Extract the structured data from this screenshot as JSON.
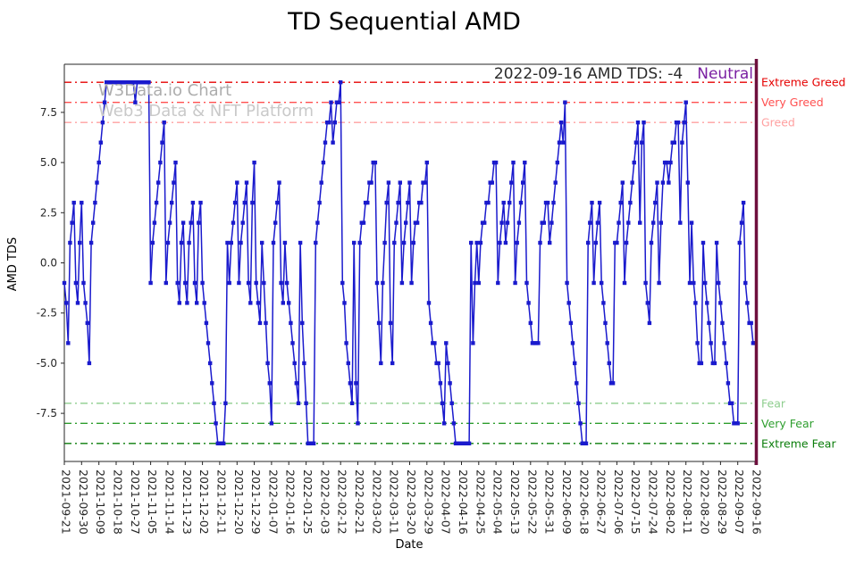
{
  "title": "TD Sequential AMD",
  "watermark": {
    "line1": "W3Data.io Chart",
    "line2": "Web3 Data & NFT Platform"
  },
  "annotation": {
    "text": "2022-09-16 AMD TDS: -4",
    "sentiment": "Neutral",
    "sentiment_color": "#7a1fa2"
  },
  "chart_data": {
    "type": "line",
    "title": "TD Sequential AMD",
    "xlabel": "Date",
    "ylabel": "AMD TDS",
    "ylim": [
      -9.9,
      9.9
    ],
    "yticks": [
      7.5,
      5.0,
      2.5,
      0.0,
      -2.5,
      -5.0,
      -7.5
    ],
    "grid": false,
    "line_color": "#1a1acd",
    "marker": "square",
    "last_date_line_color": "#6e0f3d",
    "x_tick_every": 9,
    "x_tick_labels": [
      "2021-09-21",
      "2021-09-30",
      "2021-10-09",
      "2021-10-18",
      "2021-10-27",
      "2021-11-05",
      "2021-11-14",
      "2021-11-23",
      "2021-12-02",
      "2021-12-11",
      "2021-12-20",
      "2021-12-29",
      "2022-01-07",
      "2022-01-16",
      "2022-01-25",
      "2022-02-03",
      "2022-02-12",
      "2022-02-21",
      "2022-03-02",
      "2022-03-11",
      "2022-03-20",
      "2022-03-29",
      "2022-04-07",
      "2022-04-16",
      "2022-04-25",
      "2022-05-04",
      "2022-05-13",
      "2022-05-22",
      "2022-05-31",
      "2022-06-09",
      "2022-06-18",
      "2022-06-27",
      "2022-07-06",
      "2022-07-15",
      "2022-07-24",
      "2022-08-02",
      "2022-08-11",
      "2022-08-20",
      "2022-08-29",
      "2022-09-07",
      "2022-09-16"
    ],
    "values": [
      -1,
      -2,
      -4,
      1,
      2,
      3,
      -1,
      -2,
      1,
      3,
      -1,
      -2,
      -3,
      -5,
      1,
      2,
      3,
      4,
      5,
      6,
      7,
      8,
      9,
      9,
      9,
      9,
      9,
      9,
      9,
      9,
      9,
      9,
      9,
      9,
      9,
      9,
      9,
      8,
      9,
      9,
      9,
      9,
      9,
      9,
      9,
      -1,
      1,
      2,
      3,
      4,
      5,
      6,
      7,
      -1,
      1,
      2,
      3,
      4,
      5,
      -1,
      -2,
      1,
      2,
      -1,
      -2,
      1,
      2,
      3,
      -1,
      -2,
      2,
      3,
      -1,
      -2,
      -3,
      -4,
      -5,
      -6,
      -7,
      -8,
      -9,
      -9,
      -9,
      -9,
      -7,
      1,
      -1,
      1,
      2,
      3,
      4,
      -1,
      1,
      2,
      3,
      4,
      -1,
      -2,
      3,
      5,
      -1,
      -2,
      -3,
      1,
      -1,
      -3,
      -5,
      -6,
      -8,
      1,
      2,
      3,
      4,
      -1,
      -2,
      1,
      -1,
      -2,
      -3,
      -4,
      -5,
      -6,
      -7,
      1,
      -3,
      -5,
      -7,
      -9,
      -9,
      -9,
      -9,
      1,
      2,
      3,
      4,
      5,
      6,
      7,
      7,
      8,
      6,
      7,
      8,
      8,
      9,
      -1,
      -2,
      -4,
      -5,
      -6,
      -7,
      1,
      -6,
      -8,
      1,
      2,
      2,
      3,
      3,
      4,
      4,
      5,
      5,
      -1,
      -3,
      -5,
      -1,
      1,
      3,
      4,
      -3,
      -5,
      1,
      2,
      3,
      4,
      -1,
      1,
      2,
      3,
      4,
      -1,
      1,
      2,
      2,
      3,
      3,
      4,
      4,
      5,
      -2,
      -3,
      -4,
      -4,
      -5,
      -5,
      -6,
      -7,
      -8,
      -4,
      -5,
      -6,
      -7,
      -8,
      -9,
      -9,
      -9,
      -9,
      -9,
      -9,
      -9,
      -9,
      1,
      -4,
      -1,
      1,
      -1,
      1,
      2,
      2,
      3,
      3,
      4,
      4,
      5,
      5,
      -1,
      1,
      2,
      3,
      1,
      2,
      3,
      4,
      5,
      -1,
      1,
      2,
      3,
      4,
      5,
      -1,
      -2,
      -3,
      -4,
      -4,
      -4,
      -4,
      1,
      2,
      2,
      3,
      3,
      1,
      2,
      3,
      4,
      5,
      6,
      7,
      6,
      8,
      -1,
      -2,
      -3,
      -4,
      -5,
      -6,
      -7,
      -8,
      -9,
      -9,
      -9,
      1,
      2,
      3,
      -1,
      1,
      2,
      3,
      -1,
      -2,
      -3,
      -4,
      -5,
      -6,
      -6,
      1,
      1,
      2,
      3,
      4,
      -1,
      1,
      2,
      3,
      4,
      5,
      6,
      7,
      2,
      6,
      7,
      -1,
      -2,
      -3,
      1,
      2,
      3,
      4,
      -1,
      2,
      4,
      5,
      5,
      4,
      5,
      6,
      6,
      7,
      7,
      2,
      6,
      7,
      8,
      4,
      -1,
      2,
      -1,
      -2,
      -4,
      -5,
      -5,
      1,
      -1,
      -2,
      -3,
      -4,
      -5,
      -5,
      1,
      -1,
      -2,
      -3,
      -4,
      -5,
      -6,
      -7,
      -7,
      -8,
      -8,
      -8,
      1,
      2,
      3,
      -1,
      -2,
      -3,
      -3,
      -4,
      -4
    ],
    "thresholds": [
      {
        "value": 9,
        "label": "Extreme Greed",
        "color": "#e60000"
      },
      {
        "value": 8,
        "label": "Very Greed",
        "color": "#ff5050"
      },
      {
        "value": 7,
        "label": "Greed",
        "color": "#ffa0a0"
      },
      {
        "value": -7,
        "label": "Fear",
        "color": "#8fce8f"
      },
      {
        "value": -8,
        "label": "Very Fear",
        "color": "#2e9e2e"
      },
      {
        "value": -9,
        "label": "Extreme Fear",
        "color": "#0a7d0a"
      }
    ]
  }
}
